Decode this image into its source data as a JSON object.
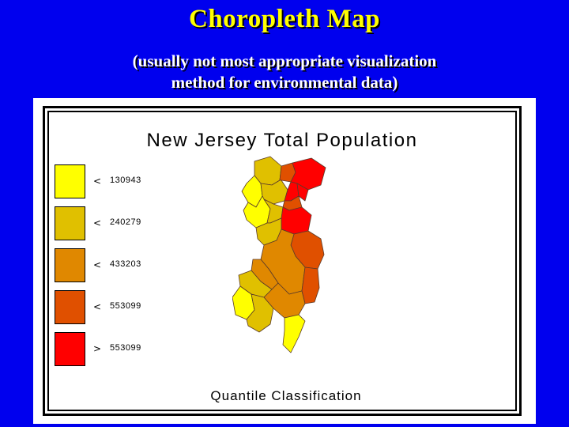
{
  "slide": {
    "title": "Choropleth Map",
    "subtitle_line1": "(usually not most appropriate visualization",
    "subtitle_line2": "method for environmental data)"
  },
  "map": {
    "title": "New Jersey Total Population",
    "footer": "Quantile Classification"
  },
  "legend": [
    {
      "operator": "<",
      "value": "130943",
      "color": "#ffff00"
    },
    {
      "operator": "<",
      "value": "240279",
      "color": "#e0c000"
    },
    {
      "operator": "<",
      "value": "433203",
      "color": "#e08800"
    },
    {
      "operator": "<",
      "value": "553099",
      "color": "#e05000"
    },
    {
      "operator": ">",
      "value": "553099",
      "color": "#ff0000"
    }
  ],
  "colors": {
    "background": "#0000ee",
    "title": "#ffff00",
    "subtitle": "#ffffff"
  }
}
